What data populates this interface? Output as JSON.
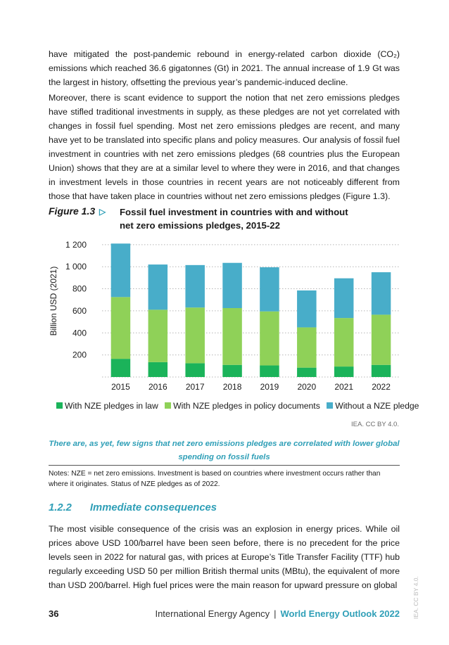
{
  "body": {
    "para1": "have mitigated the post-pandemic rebound in energy-related carbon dioxide (CO₂) emissions which reached 36.6 gigatonnes (Gt) in 2021. The annual increase of 1.9 Gt was the largest in history, offsetting the previous year’s pandemic-induced decline.",
    "para2": "Moreover, there is scant evidence to support the notion that net zero emissions pledges have stifled traditional investments in supply, as these pledges are not yet correlated with changes in fossil fuel spending. Most net zero emissions pledges are recent, and many have yet to be translated into specific plans and policy measures. Our analysis of fossil fuel investment in countries with net zero emissions pledges (68 countries plus the European Union) shows that they are at a similar level to where they were in 2016, and that changes in investment levels in those countries in recent years are not noticeably different from those that have taken place in countries without net zero emissions pledges (Figure 1.3).",
    "para3": "The most visible consequence of the crisis was an explosion in energy prices. While oil prices above USD 100/barrel have been seen before, there is no precedent for the price levels seen in 2022 for natural gas, with prices at Europe’s Title Transfer Facility (TTF) hub regularly exceeding USD 50 per million British thermal units (MBtu), the equivalent of more than USD 200/barrel. High fuel prices were the main reason for upward pressure on global"
  },
  "figure": {
    "label": "Figure 1.3",
    "arrow": "▷",
    "title": "Fossil fuel investment in countries with and without net zero emissions pledges, 2015-22",
    "source": "IEA. CC BY 4.0.",
    "key_message": "There are, as yet, few signs that net zero emissions pledges are correlated with lower global spending on fossil fuels",
    "notes": "Notes: NZE = net zero emissions. Investment is based on countries where investment occurs rather than where it originates. Status of NZE pledges as of 2022."
  },
  "chart_data": {
    "type": "bar",
    "stacked": true,
    "title": "",
    "xlabel": "",
    "ylabel": "Billion USD (2021)",
    "ylim": [
      0,
      1250
    ],
    "yticks": [
      200,
      400,
      600,
      800,
      1000,
      1200
    ],
    "ytick_labels": [
      "200",
      "400",
      "600",
      "800",
      "1 000",
      "1 200"
    ],
    "grid": "horizontal dotted",
    "legend_position": "bottom",
    "categories": [
      "2015",
      "2016",
      "2017",
      "2018",
      "2019",
      "2020",
      "2021",
      "2022"
    ],
    "series": [
      {
        "name": "With NZE pledges in law",
        "color": "#1bb35a",
        "values": [
          165,
          135,
          125,
          110,
          105,
          85,
          95,
          110
        ]
      },
      {
        "name": "With NZE pledges in policy documents",
        "color": "#8fd158",
        "values": [
          560,
          475,
          505,
          515,
          490,
          365,
          440,
          455
        ]
      },
      {
        "name": "Without a NZE pledge",
        "color": "#48adc9",
        "values": [
          485,
          410,
          385,
          410,
          400,
          335,
          360,
          385
        ]
      }
    ]
  },
  "section": {
    "number": "1.2.2",
    "title": "Immediate consequences"
  },
  "footer": {
    "page_number": "36",
    "org": "International Energy Agency",
    "separator": "|",
    "publication": "World Energy Outlook 2022",
    "side_watermark": "IEA. CC BY 4.0."
  }
}
